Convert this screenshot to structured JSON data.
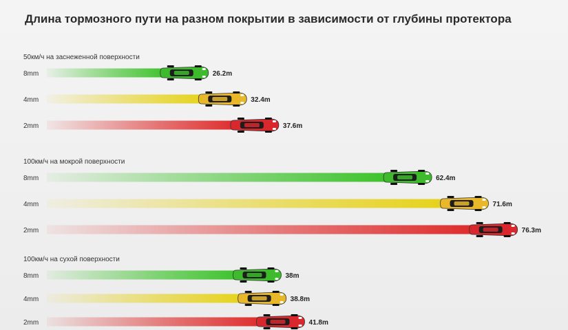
{
  "colors": {
    "8mm": "#3cc22a",
    "4mm": "#e6d21a",
    "2mm": "#de2b2b",
    "car_green": "#3dbb2c",
    "car_yellow": "#e8b72a",
    "car_red": "#d8282e"
  },
  "chart_data": {
    "type": "bar",
    "title": "Длина тормозного пути на разном покрытии в зависимости от глубины протектора",
    "series_labels": [
      "8mm",
      "4mm",
      "2mm"
    ],
    "groups": [
      {
        "label": "50км/ч на заснеженной поверхности",
        "bars": [
          {
            "tread": "8mm",
            "value": 26.2,
            "label": "26.2m"
          },
          {
            "tread": "4mm",
            "value": 32.4,
            "label": "32.4m"
          },
          {
            "tread": "2mm",
            "value": 37.6,
            "label": "37.6m"
          }
        ]
      },
      {
        "label": "100км/ч на мокрой поверхности",
        "bars": [
          {
            "tread": "8mm",
            "value": 62.4,
            "label": "62.4m"
          },
          {
            "tread": "4mm",
            "value": 71.6,
            "label": "71.6m"
          },
          {
            "tread": "2mm",
            "value": 76.3,
            "label": "76.3m"
          }
        ]
      },
      {
        "label": "100км/ч на сухой поверхности",
        "bars": [
          {
            "tread": "8mm",
            "value": 38,
            "label": "38m"
          },
          {
            "tread": "4mm",
            "value": 38.8,
            "label": "38.8m"
          },
          {
            "tread": "2mm",
            "value": 41.8,
            "label": "41.8m"
          }
        ]
      }
    ]
  }
}
